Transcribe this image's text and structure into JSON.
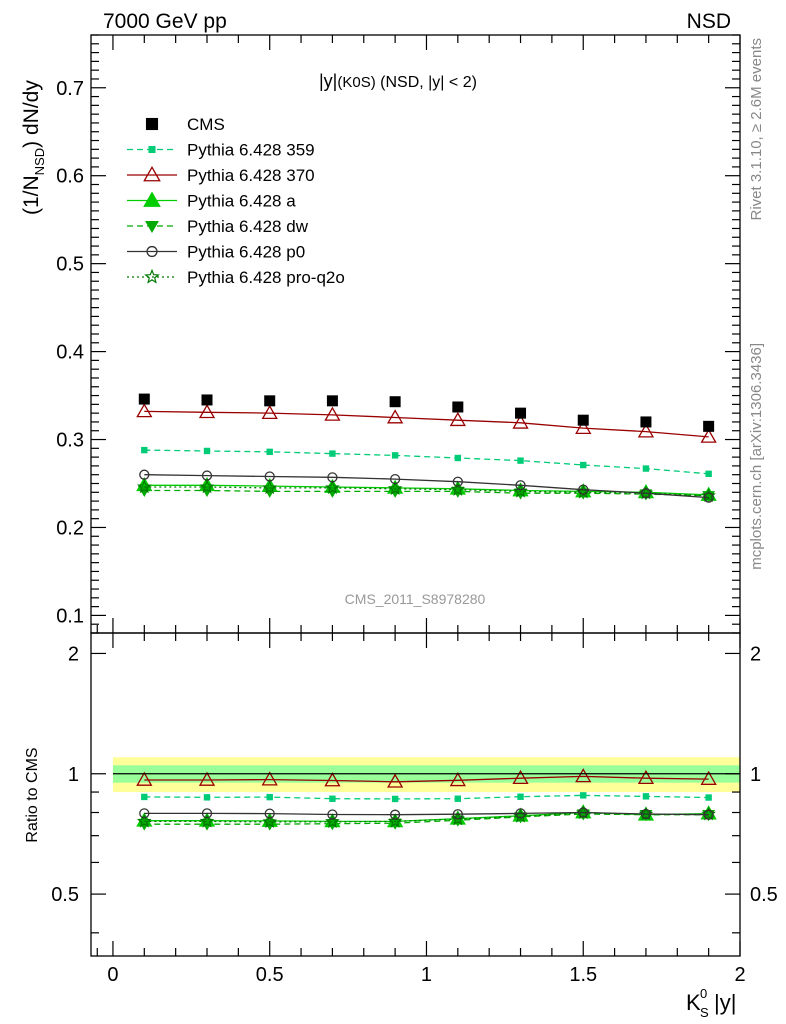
{
  "header": {
    "left": "7000 GeV pp",
    "right": "NSD"
  },
  "side_labels": {
    "rivet": "Rivet 3.1.10, ≥ 2.6M events",
    "mcplots": "mcplots.cern.ch [arXiv:1306.3436]"
  },
  "chart_data": {
    "type": "line",
    "title": "|y|(K0S) (NSD, |y| < 2)",
    "watermark": "CMS_2011_S8978280",
    "xlabel": "K_S^0 |y|",
    "ylabel": "(1/N_NSD) dN/dy",
    "ratio_ylabel": "Ratio to CMS",
    "xlim": [
      -0.07,
      2.0
    ],
    "ylim": [
      0.08,
      0.76
    ],
    "ratio_ylim": [
      0.35,
      2.25
    ],
    "x_ticks": [
      "0",
      "0.5",
      "1",
      "1.5",
      "2"
    ],
    "x_tick_values": [
      0,
      0.5,
      1,
      1.5,
      2
    ],
    "y_ticks": [
      "0.1",
      "0.2",
      "0.3",
      "0.4",
      "0.5",
      "0.6",
      "0.7"
    ],
    "y_tick_values": [
      0.1,
      0.2,
      0.3,
      0.4,
      0.5,
      0.6,
      0.7
    ],
    "ratio_y_ticks": [
      "0.5",
      "1",
      "2"
    ],
    "ratio_y_tick_values": [
      0.5,
      1,
      2
    ],
    "x": [
      0.1,
      0.3,
      0.5,
      0.7,
      0.9,
      1.1,
      1.3,
      1.5,
      1.7,
      1.9
    ],
    "ratio_band": {
      "inner": [
        0.95,
        1.05
      ],
      "outer": [
        0.9,
        1.1
      ],
      "inner_color": "#99ff99",
      "outer_color": "#ffff99"
    },
    "legend_position": "top-left",
    "series": [
      {
        "name": "CMS",
        "values": [
          0.346,
          0.345,
          0.344,
          0.344,
          0.343,
          0.337,
          0.33,
          0.322,
          0.32,
          0.315
        ],
        "ratio": [
          1,
          1,
          1,
          1,
          1,
          1,
          1,
          1,
          1,
          1
        ],
        "color": "#000000",
        "marker": "square",
        "line": "none"
      },
      {
        "name": "Pythia 6.428 359",
        "values": [
          0.288,
          0.287,
          0.286,
          0.284,
          0.282,
          0.279,
          0.276,
          0.271,
          0.267,
          0.261
        ],
        "ratio": [
          0.875,
          0.873,
          0.874,
          0.866,
          0.865,
          0.866,
          0.876,
          0.883,
          0.878,
          0.872
        ],
        "color": "#00cc77",
        "marker": "small-square",
        "line": "dashed"
      },
      {
        "name": "Pythia 6.428 370",
        "values": [
          0.332,
          0.331,
          0.33,
          0.328,
          0.325,
          0.322,
          0.319,
          0.313,
          0.309,
          0.303
        ],
        "ratio": [
          0.965,
          0.965,
          0.967,
          0.962,
          0.955,
          0.963,
          0.975,
          0.985,
          0.975,
          0.97
        ],
        "color": "#990000",
        "marker": "open-triangle",
        "line": "solid"
      },
      {
        "name": "Pythia 6.428 a",
        "values": [
          0.248,
          0.248,
          0.247,
          0.246,
          0.245,
          0.244,
          0.242,
          0.241,
          0.24,
          0.237
        ],
        "ratio": [
          0.763,
          0.763,
          0.762,
          0.76,
          0.76,
          0.772,
          0.785,
          0.8,
          0.79,
          0.795
        ],
        "color": "#00cc00",
        "marker": "filled-triangle",
        "line": "solid"
      },
      {
        "name": "Pythia 6.428 dw",
        "values": [
          0.242,
          0.242,
          0.241,
          0.241,
          0.241,
          0.241,
          0.239,
          0.239,
          0.238,
          0.236
        ],
        "ratio": [
          0.748,
          0.748,
          0.748,
          0.75,
          0.752,
          0.765,
          0.78,
          0.793,
          0.79,
          0.79
        ],
        "color": "#00aa00",
        "marker": "inverted-triangle",
        "line": "dashed"
      },
      {
        "name": "Pythia 6.428 p0",
        "values": [
          0.26,
          0.259,
          0.258,
          0.257,
          0.255,
          0.252,
          0.248,
          0.243,
          0.239,
          0.234
        ],
        "ratio": [
          0.796,
          0.796,
          0.795,
          0.791,
          0.79,
          0.792,
          0.796,
          0.8,
          0.793,
          0.79
        ],
        "color": "#333333",
        "marker": "open-circle",
        "line": "solid"
      },
      {
        "name": "Pythia 6.428 pro-q2o",
        "values": [
          0.246,
          0.246,
          0.245,
          0.245,
          0.244,
          0.243,
          0.241,
          0.24,
          0.239,
          0.236
        ],
        "ratio": [
          0.76,
          0.76,
          0.758,
          0.758,
          0.76,
          0.77,
          0.782,
          0.798,
          0.792,
          0.792
        ],
        "color": "#007700",
        "marker": "open-star",
        "line": "dotted"
      }
    ]
  }
}
